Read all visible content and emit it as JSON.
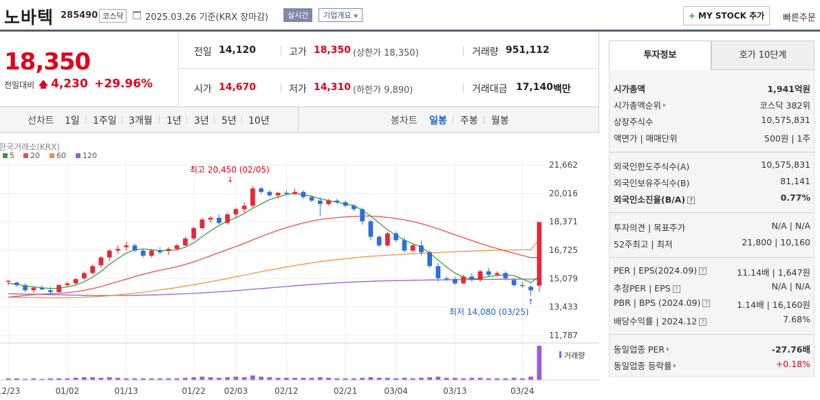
{
  "header": {
    "name": "노바텍",
    "code": "285490",
    "market": "코스닥",
    "date": "2025.03.26  기준(KRX 장마감)",
    "realtime": "실시간",
    "company": "기업개요",
    "mystock": "MY STOCK 추가",
    "mystock_plus": "+",
    "quick_order": "빠른주문"
  },
  "price": {
    "current": "18,350",
    "change_label": "전일대비",
    "change": "4,230",
    "change_pct": "+29.96%",
    "prev_close_label": "전일",
    "prev_close": "14,120",
    "high_label": "고가",
    "high": "18,350",
    "upper_limit_text": "(상한가 18,350)",
    "volume_label": "거래량",
    "volume": "951,112",
    "open_label": "시가",
    "open": "14,670",
    "low_label": "저가",
    "low": "14,310",
    "lower_limit_text": "(하한가 9,890)",
    "amount_label": "거래대금",
    "amount": "17,140",
    "amount_unit": "백만"
  },
  "periods": {
    "line_label": "선차트",
    "line_items": [
      "1일",
      "1주일",
      "3개월",
      "1년",
      "3년",
      "5년",
      "10년"
    ],
    "candle_label": "봉차트",
    "candle_items": [
      "일봉",
      "주봉",
      "월봉"
    ],
    "active_candle": "일봉"
  },
  "chart_data": {
    "type": "candlestick",
    "source_label": "한국거래소(KRX)",
    "legend": [
      {
        "name": "5",
        "color": "#3a9d3a"
      },
      {
        "name": "20",
        "color": "#e84c4c"
      },
      {
        "name": "60",
        "color": "#f0923a"
      },
      {
        "name": "120",
        "color": "#9a5fcf"
      }
    ],
    "y_ticks": [
      "21,662",
      "20,016",
      "18,371",
      "16,725",
      "15,079",
      "13,433",
      "11,787"
    ],
    "ylim": [
      11787,
      21662
    ],
    "x_ticks": [
      "12/23",
      "01/02",
      "01/13",
      "01/22",
      "02/03",
      "02/12",
      "02/21",
      "03/04",
      "03/13",
      "03/24"
    ],
    "high_annotation": "최고 20,450 (02/05)",
    "low_annotation": "최저 14,080 (03/25)",
    "volume_label": "거래량",
    "candles": [
      [
        14900,
        15000,
        14700,
        14950
      ],
      [
        14850,
        14900,
        14600,
        14700
      ],
      [
        14700,
        14800,
        14300,
        14400
      ],
      [
        14400,
        14600,
        14250,
        14550
      ],
      [
        14550,
        14700,
        14400,
        14450
      ],
      [
        14400,
        14600,
        14200,
        14300
      ],
      [
        14300,
        14750,
        14250,
        14700
      ],
      [
        14700,
        14900,
        14600,
        14800
      ],
      [
        14800,
        15100,
        14750,
        15050
      ],
      [
        15100,
        15500,
        15000,
        15400
      ],
      [
        15400,
        15900,
        15300,
        15800
      ],
      [
        15850,
        16400,
        15700,
        16300
      ],
      [
        16300,
        16800,
        16100,
        16700
      ],
      [
        16700,
        17000,
        16500,
        16800
      ],
      [
        16900,
        17200,
        16700,
        17000
      ],
      [
        17000,
        17100,
        16600,
        16700
      ],
      [
        16700,
        16800,
        16300,
        16400
      ],
      [
        16400,
        16800,
        16300,
        16700
      ],
      [
        16700,
        16900,
        16500,
        16600
      ],
      [
        16700,
        16900,
        16450,
        16800
      ],
      [
        16800,
        17100,
        16700,
        17000
      ],
      [
        17000,
        17500,
        16950,
        17400
      ],
      [
        17400,
        18100,
        17300,
        18000
      ],
      [
        18000,
        18600,
        17900,
        18500
      ],
      [
        18500,
        18700,
        18300,
        18600
      ],
      [
        18600,
        18800,
        18200,
        18300
      ],
      [
        18300,
        18900,
        18200,
        18800
      ],
      [
        18800,
        19200,
        18600,
        19100
      ],
      [
        19100,
        19500,
        18900,
        19300
      ],
      [
        19300,
        20450,
        19200,
        20300
      ],
      [
        20300,
        20400,
        20000,
        20100
      ],
      [
        20100,
        20200,
        19800,
        19900
      ],
      [
        19900,
        20100,
        19700,
        20050
      ],
      [
        20050,
        20200,
        19900,
        20000
      ],
      [
        20000,
        20300,
        19900,
        20100
      ],
      [
        20100,
        20200,
        19700,
        19800
      ],
      [
        19800,
        19900,
        19500,
        19600
      ],
      [
        19600,
        19800,
        18700,
        19400
      ],
      [
        19400,
        19700,
        19300,
        19600
      ],
      [
        19600,
        19700,
        19400,
        19500
      ],
      [
        19500,
        19600,
        19200,
        19300
      ],
      [
        19300,
        19400,
        19000,
        19100
      ],
      [
        19100,
        19200,
        18200,
        18400
      ],
      [
        18400,
        18500,
        17300,
        17500
      ],
      [
        17500,
        17600,
        16900,
        17000
      ],
      [
        17000,
        17800,
        16900,
        17700
      ],
      [
        17700,
        17800,
        17200,
        17300
      ],
      [
        17300,
        17500,
        16600,
        16700
      ],
      [
        16700,
        17100,
        16600,
        17000
      ],
      [
        17000,
        17300,
        16400,
        16600
      ],
      [
        16600,
        16700,
        15700,
        15800
      ],
      [
        15800,
        16000,
        14900,
        15100
      ],
      [
        15100,
        15200,
        14950,
        15050
      ],
      [
        15050,
        15200,
        14700,
        14800
      ],
      [
        14800,
        15300,
        14750,
        15200
      ],
      [
        15200,
        15400,
        14900,
        15000
      ],
      [
        15000,
        15600,
        14900,
        15500
      ],
      [
        15500,
        15700,
        15200,
        15300
      ],
      [
        15300,
        15500,
        15200,
        15400
      ],
      [
        15400,
        15500,
        15000,
        15100
      ],
      [
        15000,
        15100,
        14600,
        14700
      ],
      [
        14700,
        14900,
        14550,
        14650
      ],
      [
        14600,
        14700,
        14080,
        14400
      ],
      [
        14670,
        18350,
        14310,
        18350
      ]
    ],
    "ma5": [
      14800,
      14750,
      14650,
      14600,
      14550,
      14500,
      14520,
      14600,
      14700,
      14900,
      15150,
      15500,
      15900,
      16250,
      16550,
      16750,
      16800,
      16750,
      16700,
      16700,
      16750,
      16900,
      17150,
      17500,
      17850,
      18150,
      18400,
      18600,
      18850,
      19150,
      19400,
      19650,
      19800,
      19950,
      20000,
      19950,
      19850,
      19700,
      19600,
      19500,
      19400,
      19300,
      19050,
      18700,
      18300,
      17900,
      17600,
      17300,
      17100,
      16900,
      16550,
      16150,
      15750,
      15400,
      15150,
      15050,
      15100,
      15200,
      15250,
      15300,
      15250,
      15050,
      14850,
      15200
    ],
    "ma20": [
      14000,
      14050,
      14100,
      14150,
      14180,
      14200,
      14220,
      14260,
      14320,
      14400,
      14500,
      14620,
      14760,
      14900,
      15050,
      15200,
      15330,
      15450,
      15560,
      15660,
      15770,
      15900,
      16050,
      16220,
      16400,
      16580,
      16760,
      16940,
      17120,
      17320,
      17520,
      17700,
      17880,
      18030,
      18170,
      18300,
      18410,
      18500,
      18560,
      18610,
      18650,
      18680,
      18700,
      18700,
      18670,
      18620,
      18560,
      18480,
      18380,
      18260,
      18120,
      17960,
      17790,
      17620,
      17450,
      17280,
      17120,
      16960,
      16820,
      16680,
      16550,
      16420,
      16300,
      16300
    ],
    "ma60": [
      14000,
      14000,
      13990,
      13980,
      13970,
      13960,
      13960,
      13970,
      13980,
      14000,
      14020,
      14050,
      14090,
      14130,
      14180,
      14230,
      14290,
      14350,
      14420,
      14490,
      14560,
      14640,
      14720,
      14810,
      14900,
      14990,
      15080,
      15180,
      15280,
      15380,
      15480,
      15570,
      15660,
      15750,
      15830,
      15910,
      15990,
      16060,
      16120,
      16180,
      16230,
      16280,
      16330,
      16370,
      16400,
      16430,
      16460,
      16490,
      16520,
      16540,
      16570,
      16590,
      16610,
      16630,
      16650,
      16670,
      16690,
      16710,
      16720,
      16730,
      16740,
      16750,
      16750,
      17350
    ],
    "ma120": [
      14200,
      14190,
      14180,
      14170,
      14160,
      14150,
      14140,
      14130,
      14120,
      14110,
      14100,
      14100,
      14100,
      14100,
      14100,
      14110,
      14120,
      14130,
      14140,
      14160,
      14180,
      14200,
      14220,
      14250,
      14280,
      14310,
      14340,
      14380,
      14420,
      14460,
      14500,
      14540,
      14580,
      14620,
      14660,
      14700,
      14740,
      14770,
      14800,
      14830,
      14860,
      14880,
      14900,
      14920,
      14940,
      14950,
      14960,
      14970,
      14980,
      14990,
      15000,
      15000,
      15010,
      15010,
      15020,
      15020,
      15030,
      15030,
      15040,
      15040,
      15050,
      15050,
      15050,
      15060
    ],
    "volumes": [
      3,
      3,
      2,
      3,
      2,
      3,
      3,
      3,
      4,
      5,
      5,
      4,
      5,
      4,
      3,
      3,
      3,
      3,
      3,
      3,
      3,
      4,
      5,
      6,
      5,
      4,
      5,
      6,
      5,
      8,
      6,
      5,
      4,
      4,
      4,
      4,
      4,
      5,
      4,
      3,
      3,
      3,
      4,
      5,
      4,
      4,
      3,
      4,
      3,
      4,
      5,
      6,
      4,
      4,
      3,
      4,
      4,
      3,
      3,
      3,
      4,
      3,
      6,
      60
    ]
  },
  "right": {
    "tab_invest": "투자정보",
    "tab_hoga": "호가 10단계",
    "market_cap_label": "시가총액",
    "market_cap": "1,941억원",
    "cap_rank_label": "시가총액순위",
    "cap_rank": "코스닥 382위",
    "shares_label": "상장주식수",
    "shares": "10,575,831",
    "par_label": "액면가 | 매매단위",
    "par": "500원 | 1주",
    "foreign_limit_label": "외국인한도주식수(A)",
    "foreign_limit": "10,575,831",
    "foreign_hold_label": "외국인보유주식수(B)",
    "foreign_hold": "81,141",
    "foreign_ratio_label": "외국인소진율(B/A)",
    "foreign_ratio": "0.77%",
    "opinion_label": "투자의견 | 목표주가",
    "opinion": "N/A | N/A",
    "w52_label": "52주최고 | 최저",
    "w52": "21,800 | 10,160",
    "per_label": "PER | EPS(2024.09)",
    "per": "11.14배 | 1,647원",
    "est_per_label": "추정PER | EPS",
    "est_per": "N/A | N/A",
    "pbr_label": "PBR | BPS (2024.09)",
    "pbr": "1.14배 | 16,160원",
    "div_label": "배당수익률 | 2024.12",
    "div": "7.68%",
    "ind_per_label": "동일업종 PER",
    "ind_per": "-27.76배",
    "ind_rate_label": "동일업종 등락률",
    "ind_rate": "+0.18%"
  }
}
